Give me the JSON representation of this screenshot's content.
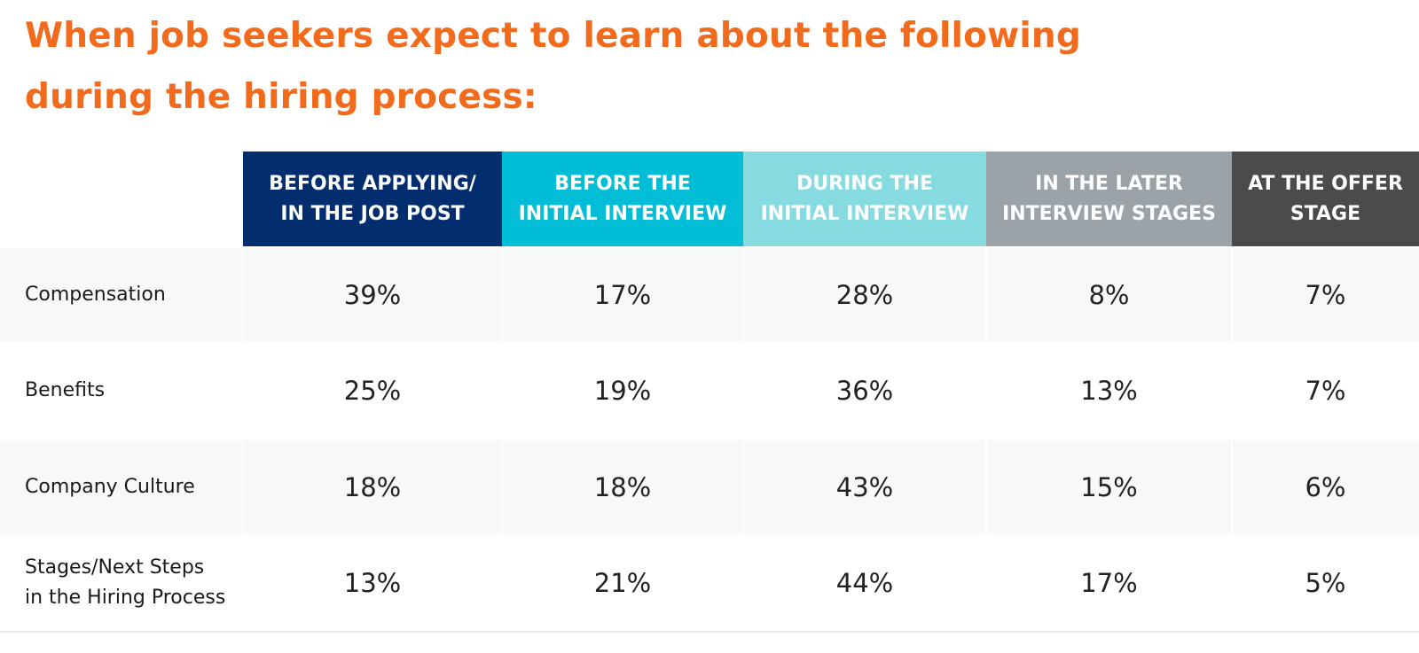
{
  "title": "When job seekers expect to learn about the following during the hiring process:",
  "chart_data": {
    "type": "table",
    "title": "When job seekers expect to learn about the following during the hiring process:",
    "columns": [
      {
        "label": "BEFORE APPLYING/\nIN THE JOB POST",
        "color": "#022d6e"
      },
      {
        "label": "BEFORE THE\nINITIAL INTERVIEW",
        "color": "#02bdd6"
      },
      {
        "label": "DURING THE\nINITIAL INTERVIEW",
        "color": "#86dbe1"
      },
      {
        "label": "IN THE LATER\nINTERVIEW STAGES",
        "color": "#9ba3a8"
      },
      {
        "label": "AT THE OFFER\nSTAGE",
        "color": "#4b4b4b"
      }
    ],
    "rows": [
      {
        "label": "Compensation",
        "values": [
          "39%",
          "17%",
          "28%",
          "8%",
          "7%"
        ]
      },
      {
        "label": "Benefits",
        "values": [
          "25%",
          "19%",
          "36%",
          "13%",
          "7%"
        ]
      },
      {
        "label": "Company Culture",
        "values": [
          "18%",
          "18%",
          "43%",
          "15%",
          "6%"
        ]
      },
      {
        "label": "Stages/Next Steps\nin the Hiring Process",
        "values": [
          "13%",
          "21%",
          "44%",
          "17%",
          "5%"
        ]
      }
    ]
  }
}
